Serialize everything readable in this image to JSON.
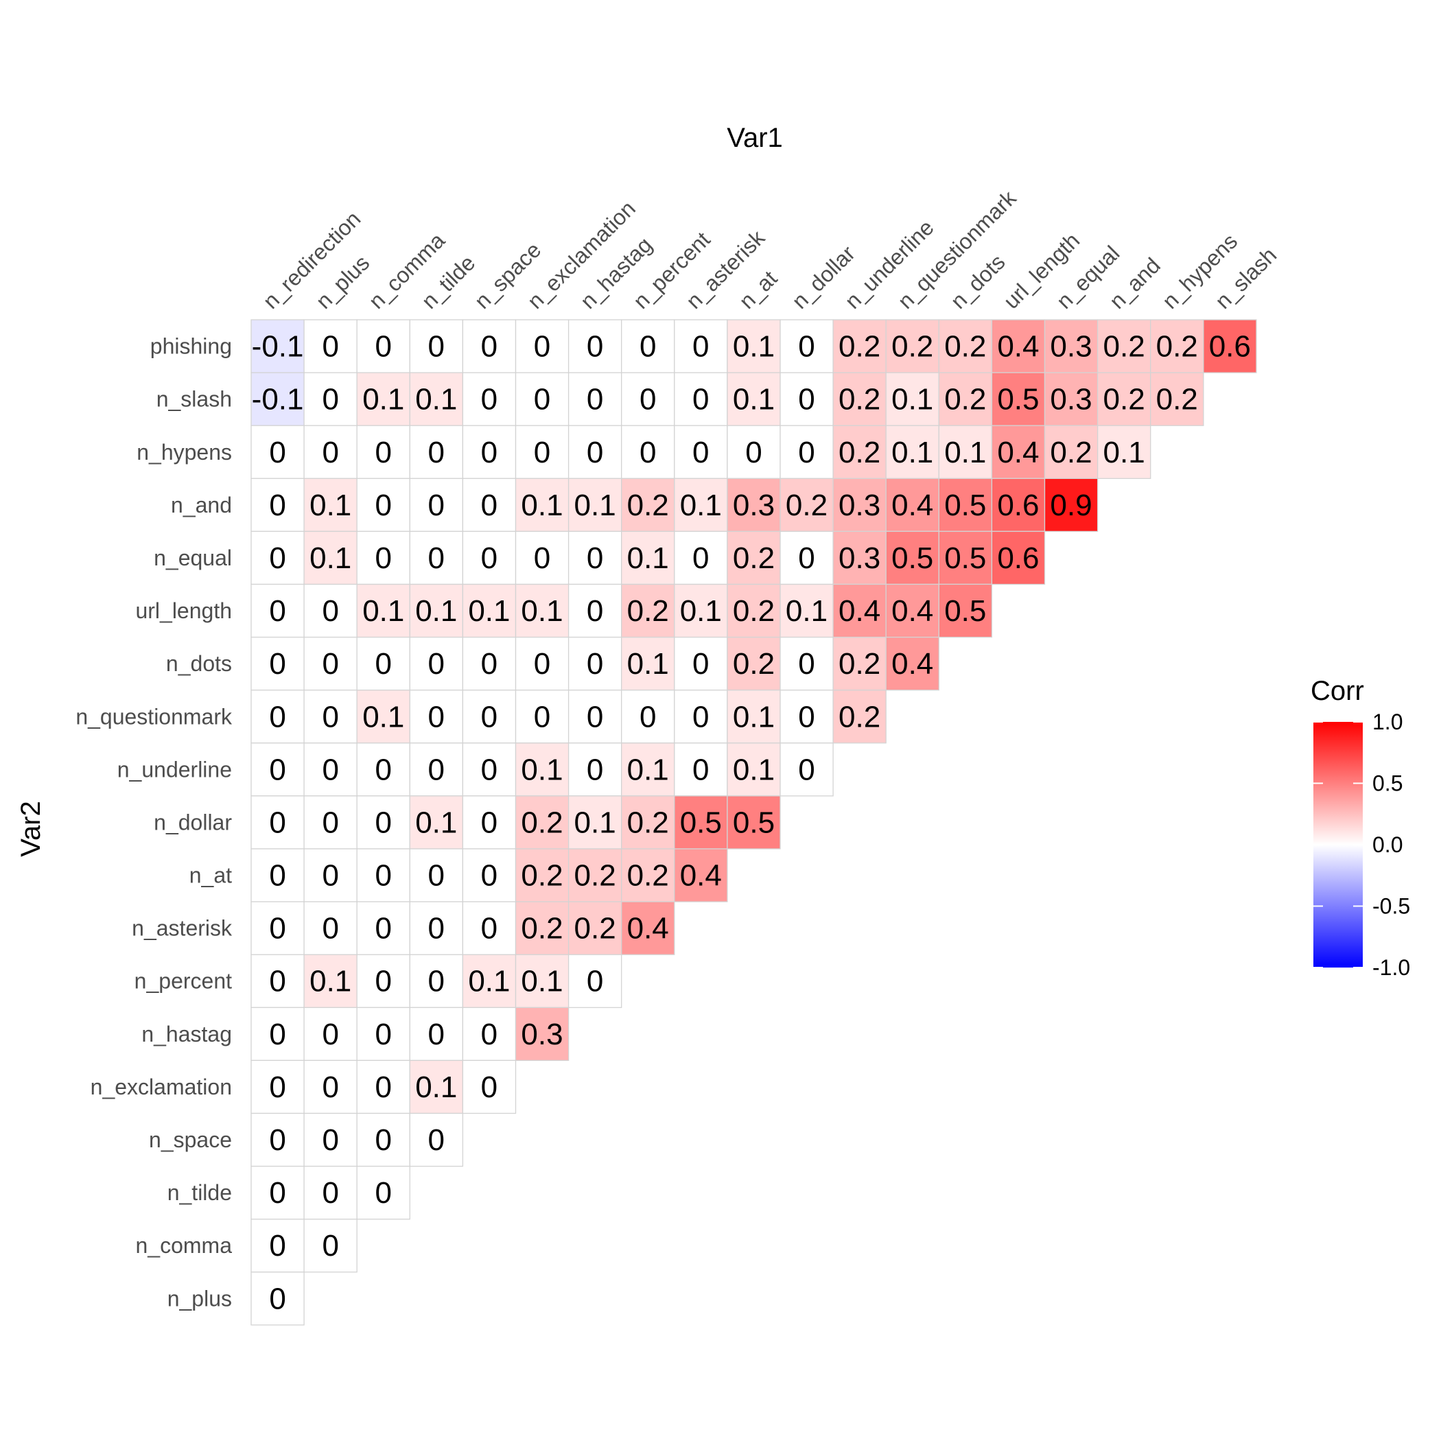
{
  "chart_data": {
    "type": "heatmap",
    "xlabel": "Var1",
    "ylabel": "Var2",
    "x_categories": [
      "n_redirection",
      "n_plus",
      "n_comma",
      "n_tilde",
      "n_space",
      "n_exclamation",
      "n_hastag",
      "n_percent",
      "n_asterisk",
      "n_at",
      "n_dollar",
      "n_underline",
      "n_questionmark",
      "n_dots",
      "url_length",
      "n_equal",
      "n_and",
      "n_hypens",
      "n_slash"
    ],
    "y_categories": [
      "phishing",
      "n_slash",
      "n_hypens",
      "n_and",
      "n_equal",
      "url_length",
      "n_dots",
      "n_questionmark",
      "n_underline",
      "n_dollar",
      "n_at",
      "n_asterisk",
      "n_percent",
      "n_hastag",
      "n_exclamation",
      "n_space",
      "n_tilde",
      "n_comma",
      "n_plus"
    ],
    "values": [
      [
        -0.1,
        0,
        0,
        0,
        0,
        0,
        0,
        0,
        0,
        0.1,
        0,
        0.2,
        0.2,
        0.2,
        0.4,
        0.3,
        0.2,
        0.2,
        0.6
      ],
      [
        -0.1,
        0,
        0.1,
        0.1,
        0,
        0,
        0,
        0,
        0,
        0.1,
        0,
        0.2,
        0.1,
        0.2,
        0.5,
        0.3,
        0.2,
        0.2
      ],
      [
        0,
        0,
        0,
        0,
        0,
        0,
        0,
        0,
        0,
        0,
        0,
        0.2,
        0.1,
        0.1,
        0.4,
        0.2,
        0.1
      ],
      [
        0,
        0.1,
        0,
        0,
        0,
        0.1,
        0.1,
        0.2,
        0.1,
        0.3,
        0.2,
        0.3,
        0.4,
        0.5,
        0.6,
        0.9
      ],
      [
        0,
        0.1,
        0,
        0,
        0,
        0,
        0,
        0.1,
        0,
        0.2,
        0,
        0.3,
        0.5,
        0.5,
        0.6
      ],
      [
        0,
        0,
        0.1,
        0.1,
        0.1,
        0.1,
        0,
        0.2,
        0.1,
        0.2,
        0.1,
        0.4,
        0.4,
        0.5
      ],
      [
        0,
        0,
        0,
        0,
        0,
        0,
        0,
        0.1,
        0,
        0.2,
        0,
        0.2,
        0.4
      ],
      [
        0,
        0,
        0.1,
        0,
        0,
        0,
        0,
        0,
        0,
        0.1,
        0,
        0.2
      ],
      [
        0,
        0,
        0,
        0,
        0,
        0.1,
        0,
        0.1,
        0,
        0.1,
        0
      ],
      [
        0,
        0,
        0,
        0.1,
        0,
        0.2,
        0.1,
        0.2,
        0.5,
        0.5
      ],
      [
        0,
        0,
        0,
        0,
        0,
        0.2,
        0.2,
        0.2,
        0.4
      ],
      [
        0,
        0,
        0,
        0,
        0,
        0.2,
        0.2,
        0.4
      ],
      [
        0,
        0.1,
        0,
        0,
        0.1,
        0.1,
        0
      ],
      [
        0,
        0,
        0,
        0,
        0,
        0.3
      ],
      [
        0,
        0,
        0,
        0.1,
        0
      ],
      [
        0,
        0,
        0,
        0
      ],
      [
        0,
        0,
        0
      ],
      [
        0,
        0
      ],
      [
        0
      ]
    ],
    "legend": {
      "title": "Corr",
      "ticks": [
        "1.0",
        "0.5",
        "0.0",
        "-0.5",
        "-1.0"
      ],
      "tick_values": [
        1.0,
        0.5,
        0.0,
        -0.5,
        -1.0
      ],
      "range": [
        -1,
        1
      ],
      "position": "right"
    },
    "colors": {
      "low": "#0000ff",
      "mid": "#ffffff",
      "high": "#ff0000",
      "tile_border": "#d3d3d3"
    },
    "grid": false
  }
}
